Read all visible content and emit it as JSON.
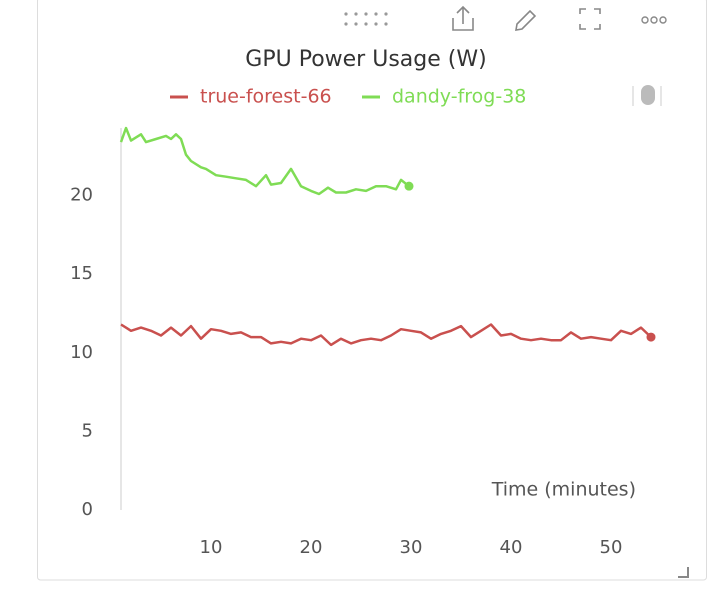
{
  "chart_data": {
    "type": "line",
    "title": "GPU Power Usage (W)",
    "xlabel": "Time (minutes)",
    "xlim": [
      1,
      54
    ],
    "xticks": [
      10,
      20,
      30,
      40,
      50
    ],
    "ylim": [
      0,
      24.3
    ],
    "yticks": [
      0,
      5,
      10,
      15,
      20
    ],
    "grid": false,
    "series": [
      {
        "name": "true-forest-66",
        "color": "#c9504e",
        "x": [
          1,
          2,
          3,
          4,
          5,
          6,
          7,
          8,
          9,
          10,
          11,
          12,
          13,
          14,
          15,
          16,
          17,
          18,
          19,
          20,
          21,
          22,
          23,
          24,
          25,
          26,
          27,
          28,
          29,
          30,
          31,
          32,
          33,
          34,
          35,
          36,
          37,
          38,
          39,
          40,
          41,
          42,
          43,
          44,
          45,
          46,
          47,
          48,
          49,
          50,
          51,
          52,
          53,
          54
        ],
        "values": [
          11.8,
          11.4,
          11.6,
          11.4,
          11.1,
          11.6,
          11.1,
          11.7,
          10.9,
          11.5,
          11.4,
          11.2,
          11.3,
          11.0,
          11.0,
          10.6,
          10.7,
          10.6,
          10.9,
          10.8,
          11.1,
          10.5,
          10.9,
          10.6,
          10.8,
          10.9,
          10.8,
          11.1,
          11.5,
          11.4,
          11.3,
          10.9,
          11.2,
          11.4,
          11.7,
          11.0,
          11.4,
          11.8,
          11.1,
          11.2,
          10.9,
          10.8,
          10.9,
          10.8,
          10.8,
          11.3,
          10.9,
          11.0,
          10.9,
          10.8,
          11.4,
          11.2,
          11.6,
          11.0
        ]
      },
      {
        "name": "dandy-frog-38",
        "color": "#7fdc55",
        "x": [
          1,
          1.5,
          2,
          3,
          3.5,
          4.5,
          5.5,
          6,
          6.5,
          7,
          7.5,
          8,
          9,
          9.5,
          10.5,
          11.5,
          12.5,
          13.5,
          14.5,
          15.5,
          16,
          17,
          18,
          19,
          20,
          20.8,
          21.7,
          22.5,
          23.5,
          24.5,
          25.5,
          26.5,
          27.5,
          28.5,
          29,
          29.8
        ],
        "values": [
          23.4,
          24.3,
          23.5,
          23.9,
          23.4,
          23.6,
          23.8,
          23.6,
          23.9,
          23.6,
          22.6,
          22.2,
          21.8,
          21.7,
          21.3,
          21.2,
          21.1,
          21.0,
          20.6,
          21.3,
          20.7,
          20.8,
          21.7,
          20.6,
          20.3,
          20.1,
          20.5,
          20.2,
          20.2,
          20.4,
          20.3,
          20.6,
          20.6,
          20.4,
          21.0,
          20.6
        ]
      }
    ]
  }
}
